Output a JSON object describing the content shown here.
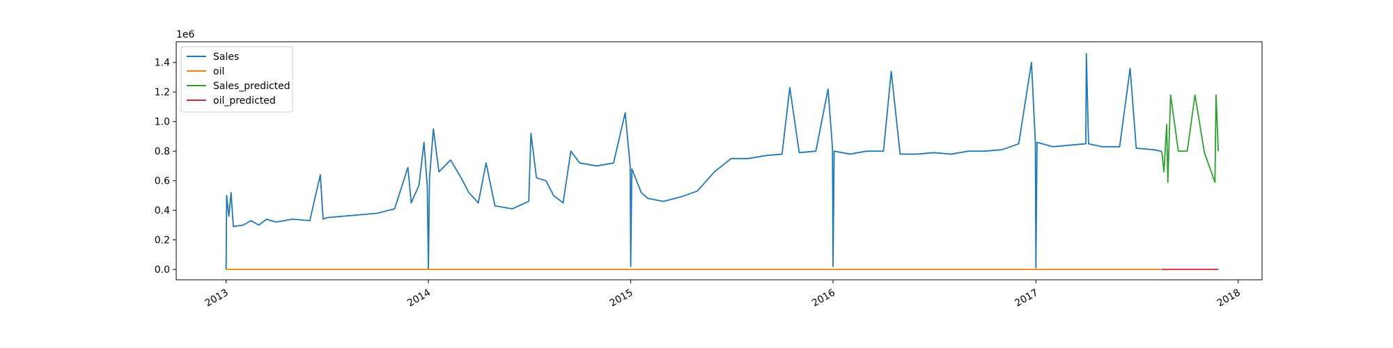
{
  "chart_data": {
    "type": "line",
    "title": "",
    "xlabel": "",
    "ylabel": "",
    "y_offset_label": "1e6",
    "y_scale": 1000000,
    "xlim": [
      "2012-10-03",
      "2018-02-13"
    ],
    "ylim": [
      -0.07,
      1.54
    ],
    "x_ticks": [
      {
        "date": "2013-01-01",
        "label": "2013"
      },
      {
        "date": "2014-01-01",
        "label": "2014"
      },
      {
        "date": "2015-01-01",
        "label": "2015"
      },
      {
        "date": "2016-01-01",
        "label": "2016"
      },
      {
        "date": "2017-01-01",
        "label": "2017"
      },
      {
        "date": "2018-01-01",
        "label": "2018"
      }
    ],
    "y_ticks": [
      {
        "value": 0.0,
        "label": "0.0"
      },
      {
        "value": 0.2,
        "label": "0.2"
      },
      {
        "value": 0.4,
        "label": "0.4"
      },
      {
        "value": 0.6,
        "label": "0.6"
      },
      {
        "value": 0.8,
        "label": "0.8"
      },
      {
        "value": 1.0,
        "label": "1.0"
      },
      {
        "value": 1.2,
        "label": "1.2"
      },
      {
        "value": 1.4,
        "label": "1.4"
      }
    ],
    "grid": false,
    "legend_position": "upper-left",
    "series": [
      {
        "name": "Sales",
        "color": "#1f77b4",
        "points": [
          [
            "2013-01-01",
            0.0
          ],
          [
            "2013-01-02",
            0.5
          ],
          [
            "2013-01-06",
            0.36
          ],
          [
            "2013-01-10",
            0.52
          ],
          [
            "2013-01-14",
            0.29
          ],
          [
            "2013-02-01",
            0.3
          ],
          [
            "2013-02-15",
            0.33
          ],
          [
            "2013-03-01",
            0.3
          ],
          [
            "2013-03-15",
            0.34
          ],
          [
            "2013-04-01",
            0.32
          ],
          [
            "2013-05-01",
            0.34
          ],
          [
            "2013-06-01",
            0.33
          ],
          [
            "2013-06-20",
            0.64
          ],
          [
            "2013-06-25",
            0.34
          ],
          [
            "2013-07-01",
            0.35
          ],
          [
            "2013-08-01",
            0.36
          ],
          [
            "2013-09-01",
            0.37
          ],
          [
            "2013-10-01",
            0.38
          ],
          [
            "2013-11-01",
            0.41
          ],
          [
            "2013-11-25",
            0.69
          ],
          [
            "2013-12-01",
            0.45
          ],
          [
            "2013-12-15",
            0.57
          ],
          [
            "2013-12-24",
            0.86
          ],
          [
            "2013-12-30",
            0.56
          ],
          [
            "2014-01-01",
            0.0
          ],
          [
            "2014-01-03",
            0.62
          ],
          [
            "2014-01-10",
            0.95
          ],
          [
            "2014-01-20",
            0.66
          ],
          [
            "2014-02-10",
            0.74
          ],
          [
            "2014-03-01",
            0.62
          ],
          [
            "2014-03-15",
            0.52
          ],
          [
            "2014-04-01",
            0.45
          ],
          [
            "2014-04-15",
            0.72
          ],
          [
            "2014-05-01",
            0.43
          ],
          [
            "2014-06-01",
            0.41
          ],
          [
            "2014-07-01",
            0.46
          ],
          [
            "2014-07-05",
            0.92
          ],
          [
            "2014-07-15",
            0.62
          ],
          [
            "2014-08-01",
            0.6
          ],
          [
            "2014-08-15",
            0.5
          ],
          [
            "2014-09-01",
            0.45
          ],
          [
            "2014-09-15",
            0.8
          ],
          [
            "2014-10-01",
            0.72
          ],
          [
            "2014-11-01",
            0.7
          ],
          [
            "2014-12-01",
            0.72
          ],
          [
            "2014-12-22",
            1.06
          ],
          [
            "2014-12-31",
            0.7
          ],
          [
            "2015-01-01",
            0.02
          ],
          [
            "2015-01-03",
            0.68
          ],
          [
            "2015-01-20",
            0.52
          ],
          [
            "2015-02-01",
            0.48
          ],
          [
            "2015-03-01",
            0.46
          ],
          [
            "2015-04-01",
            0.49
          ],
          [
            "2015-05-01",
            0.53
          ],
          [
            "2015-06-01",
            0.66
          ],
          [
            "2015-07-01",
            0.75
          ],
          [
            "2015-08-01",
            0.75
          ],
          [
            "2015-09-01",
            0.77
          ],
          [
            "2015-10-01",
            0.78
          ],
          [
            "2015-10-15",
            1.23
          ],
          [
            "2015-11-01",
            0.79
          ],
          [
            "2015-12-01",
            0.8
          ],
          [
            "2015-12-23",
            1.22
          ],
          [
            "2015-12-31",
            0.82
          ],
          [
            "2016-01-01",
            0.02
          ],
          [
            "2016-01-03",
            0.8
          ],
          [
            "2016-02-01",
            0.78
          ],
          [
            "2016-03-01",
            0.8
          ],
          [
            "2016-04-01",
            0.8
          ],
          [
            "2016-04-15",
            1.34
          ],
          [
            "2016-05-01",
            0.78
          ],
          [
            "2016-06-01",
            0.78
          ],
          [
            "2016-07-01",
            0.79
          ],
          [
            "2016-08-01",
            0.78
          ],
          [
            "2016-09-01",
            0.8
          ],
          [
            "2016-10-01",
            0.8
          ],
          [
            "2016-11-01",
            0.81
          ],
          [
            "2016-12-01",
            0.85
          ],
          [
            "2016-12-24",
            1.4
          ],
          [
            "2016-12-31",
            0.86
          ],
          [
            "2017-01-01",
            0.01
          ],
          [
            "2017-01-03",
            0.86
          ],
          [
            "2017-02-01",
            0.83
          ],
          [
            "2017-03-01",
            0.84
          ],
          [
            "2017-04-01",
            0.85
          ],
          [
            "2017-04-02",
            1.46
          ],
          [
            "2017-04-06",
            0.85
          ],
          [
            "2017-05-01",
            0.83
          ],
          [
            "2017-06-01",
            0.83
          ],
          [
            "2017-06-20",
            1.36
          ],
          [
            "2017-07-01",
            0.82
          ],
          [
            "2017-08-01",
            0.81
          ],
          [
            "2017-08-15",
            0.8
          ]
        ]
      },
      {
        "name": "oil",
        "color": "#ff7f0e",
        "points": [
          [
            "2013-01-01",
            0.0001
          ],
          [
            "2017-08-15",
            5e-05
          ]
        ]
      },
      {
        "name": "Sales_predicted",
        "color": "#2ca02c",
        "points": [
          [
            "2017-08-16",
            0.8
          ],
          [
            "2017-08-20",
            0.66
          ],
          [
            "2017-08-25",
            0.98
          ],
          [
            "2017-08-27",
            0.59
          ],
          [
            "2017-09-01",
            1.18
          ],
          [
            "2017-09-15",
            0.8
          ],
          [
            "2017-10-01",
            0.8
          ],
          [
            "2017-10-15",
            1.18
          ],
          [
            "2017-11-01",
            0.79
          ],
          [
            "2017-11-20",
            0.59
          ],
          [
            "2017-11-22",
            1.18
          ],
          [
            "2017-11-26",
            0.8
          ]
        ]
      },
      {
        "name": "oil_predicted",
        "color": "#d62728",
        "points": [
          [
            "2017-08-16",
            5e-05
          ],
          [
            "2017-11-26",
            5e-05
          ]
        ]
      }
    ]
  }
}
